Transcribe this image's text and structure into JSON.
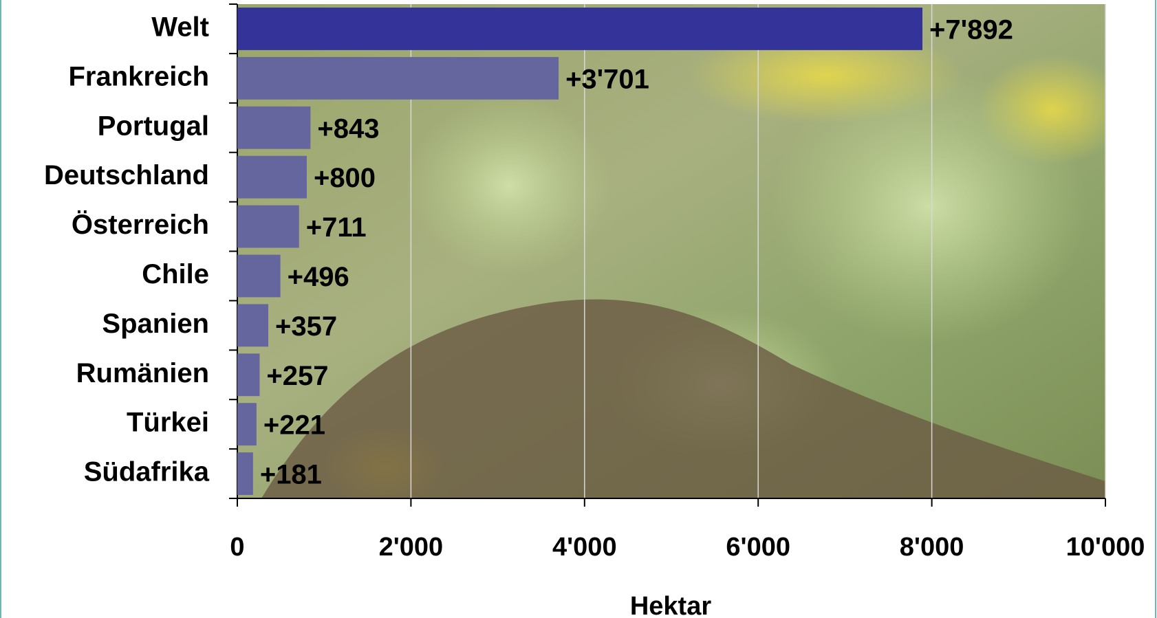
{
  "chart_data": {
    "type": "bar",
    "orientation": "horizontal",
    "categories": [
      "Welt",
      "Frankreich",
      "Portugal",
      "Deutschland",
      "Österreich",
      "Chile",
      "Spanien",
      "Rumänien",
      "Türkei",
      "Südafrika"
    ],
    "values": [
      7892,
      3701,
      843,
      800,
      711,
      496,
      357,
      257,
      221,
      181
    ],
    "value_labels": [
      "+7'892",
      "+3'701",
      "+843",
      "+800",
      "+711",
      "+496",
      "+357",
      "+257",
      "+221",
      "+181"
    ],
    "colors": [
      "#333399",
      "#66669e",
      "#66669e",
      "#66669e",
      "#66669e",
      "#66669e",
      "#66669e",
      "#66669e",
      "#66669e",
      "#66669e"
    ],
    "xlabel": "Hektar",
    "xlim": [
      0,
      10000
    ],
    "xticks": [
      0,
      {
        "value": 2000,
        "label": "2'000"
      },
      {
        "value": 4000,
        "label": "4'000"
      },
      {
        "value": 6000,
        "label": "6'000"
      },
      {
        "value": 8000,
        "label": "8'000"
      },
      {
        "value": 10000,
        "label": "10'000"
      }
    ],
    "grid": true
  }
}
